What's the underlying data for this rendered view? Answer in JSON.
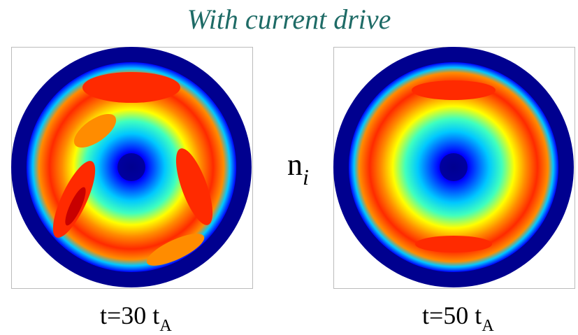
{
  "title": "With current drive",
  "variable": {
    "base": "n",
    "subscript": "i"
  },
  "panels": [
    {
      "time_value": "t=30 t",
      "time_subscript": "A"
    },
    {
      "time_value": "t=50 t",
      "time_subscript": "A"
    }
  ],
  "colormap": [
    "#00008f",
    "#0000ff",
    "#00c8ff",
    "#3fffbf",
    "#ffff00",
    "#ff8c00",
    "#ff2a00",
    "#c80000"
  ]
}
